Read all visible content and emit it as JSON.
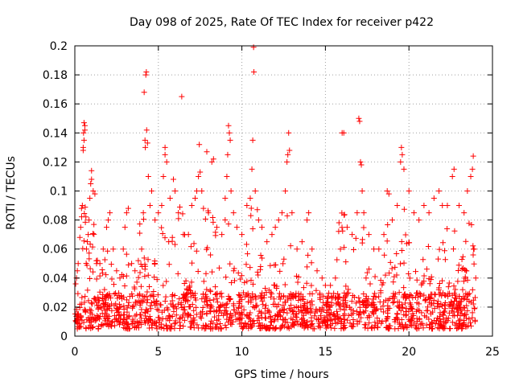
{
  "chart_data": {
    "type": "scatter",
    "title": "Day 098 of 2025, Rate Of TEC Index for receiver p422",
    "xlabel": "GPS time / hours",
    "ylabel": "ROTI / TECUs",
    "xlim": [
      0,
      25
    ],
    "ylim": [
      0,
      0.2
    ],
    "x_ticks": [
      0,
      5,
      10,
      15,
      20,
      25
    ],
    "x_tick_labels": [
      "0",
      "5",
      "10",
      "15",
      "20",
      "25"
    ],
    "y_ticks": [
      0,
      0.02,
      0.04,
      0.06,
      0.08,
      0.1,
      0.12,
      0.14,
      0.16,
      0.18,
      0.2
    ],
    "y_tick_labels": [
      "0",
      "0.02",
      "0.04",
      "0.06",
      "0.08",
      "0.1",
      "0.12",
      "0.14",
      "0.16",
      "0.18",
      "0.2"
    ],
    "grid": true,
    "marker": "+",
    "color": "#ff0000",
    "series": [
      {
        "name": "ROTI",
        "points": [
          [
            0.05,
            0.036
          ],
          [
            0.1,
            0.04
          ],
          [
            0.15,
            0.045
          ],
          [
            0.2,
            0.05
          ],
          [
            0.3,
            0.068
          ],
          [
            0.35,
            0.075
          ],
          [
            0.4,
            0.088
          ],
          [
            0.45,
            0.09
          ],
          [
            0.5,
            0.13
          ],
          [
            0.5,
            0.128
          ],
          [
            0.52,
            0.14
          ],
          [
            0.55,
            0.147
          ],
          [
            0.55,
            0.135
          ],
          [
            0.6,
            0.145
          ],
          [
            0.6,
            0.142
          ],
          [
            0.7,
            0.06
          ],
          [
            0.75,
            0.065
          ],
          [
            0.8,
            0.07
          ],
          [
            0.85,
            0.08
          ],
          [
            0.9,
            0.095
          ],
          [
            0.95,
            0.105
          ],
          [
            1.0,
            0.108
          ],
          [
            1.0,
            0.114
          ],
          [
            1.1,
            0.1
          ],
          [
            1.2,
            0.098
          ],
          [
            1.3,
            0.05
          ],
          [
            1.5,
            0.05
          ],
          [
            1.7,
            0.06
          ],
          [
            1.9,
            0.075
          ],
          [
            2.0,
            0.08
          ],
          [
            2.1,
            0.085
          ],
          [
            2.3,
            0.06
          ],
          [
            2.5,
            0.045
          ],
          [
            2.7,
            0.04
          ],
          [
            2.9,
            0.06
          ],
          [
            3.0,
            0.075
          ],
          [
            3.1,
            0.085
          ],
          [
            3.2,
            0.088
          ],
          [
            3.4,
            0.05
          ],
          [
            3.6,
            0.045
          ],
          [
            3.8,
            0.052
          ],
          [
            4.0,
            0.06
          ],
          [
            4.1,
            0.085
          ],
          [
            4.15,
            0.168
          ],
          [
            4.2,
            0.135
          ],
          [
            4.22,
            0.13
          ],
          [
            4.25,
            0.18
          ],
          [
            4.28,
            0.182
          ],
          [
            4.3,
            0.142
          ],
          [
            4.35,
            0.133
          ],
          [
            4.4,
            0.11
          ],
          [
            4.5,
            0.09
          ],
          [
            4.6,
            0.1
          ],
          [
            4.8,
            0.08
          ],
          [
            5.0,
            0.085
          ],
          [
            5.2,
            0.09
          ],
          [
            5.3,
            0.11
          ],
          [
            5.4,
            0.125
          ],
          [
            5.4,
            0.13
          ],
          [
            5.5,
            0.12
          ],
          [
            5.7,
            0.095
          ],
          [
            5.9,
            0.108
          ],
          [
            6.0,
            0.1
          ],
          [
            6.2,
            0.085
          ],
          [
            6.4,
            0.165
          ],
          [
            6.5,
            0.07
          ],
          [
            6.8,
            0.07
          ],
          [
            7.0,
            0.09
          ],
          [
            7.2,
            0.095
          ],
          [
            7.3,
            0.1
          ],
          [
            7.4,
            0.11
          ],
          [
            7.45,
            0.132
          ],
          [
            7.5,
            0.113
          ],
          [
            7.6,
            0.1
          ],
          [
            7.7,
            0.088
          ],
          [
            7.9,
            0.127
          ],
          [
            8.0,
            0.085
          ],
          [
            8.2,
            0.12
          ],
          [
            8.3,
            0.122
          ],
          [
            8.5,
            0.075
          ],
          [
            8.8,
            0.07
          ],
          [
            9.0,
            0.095
          ],
          [
            9.1,
            0.11
          ],
          [
            9.15,
            0.125
          ],
          [
            9.2,
            0.145
          ],
          [
            9.25,
            0.14
          ],
          [
            9.3,
            0.135
          ],
          [
            9.35,
            0.1
          ],
          [
            9.5,
            0.085
          ],
          [
            9.7,
            0.075
          ],
          [
            10.0,
            0.07
          ],
          [
            10.3,
            0.09
          ],
          [
            10.5,
            0.095
          ],
          [
            10.6,
            0.115
          ],
          [
            10.65,
            0.135
          ],
          [
            10.7,
            0.199
          ],
          [
            10.72,
            0.182
          ],
          [
            10.8,
            0.1
          ],
          [
            11.0,
            0.08
          ],
          [
            11.2,
            0.075
          ],
          [
            11.5,
            0.065
          ],
          [
            11.8,
            0.07
          ],
          [
            12.0,
            0.075
          ],
          [
            12.2,
            0.08
          ],
          [
            12.4,
            0.085
          ],
          [
            12.6,
            0.1
          ],
          [
            12.7,
            0.12
          ],
          [
            12.75,
            0.125
          ],
          [
            12.8,
            0.14
          ],
          [
            12.85,
            0.128
          ],
          [
            13.0,
            0.085
          ],
          [
            13.3,
            0.06
          ],
          [
            13.6,
            0.065
          ],
          [
            13.9,
            0.08
          ],
          [
            14.0,
            0.085
          ],
          [
            14.2,
            0.06
          ],
          [
            14.5,
            0.045
          ],
          [
            14.8,
            0.04
          ],
          [
            15.0,
            0.035
          ],
          [
            15.3,
            0.035
          ],
          [
            15.6,
            0.04
          ],
          [
            15.9,
            0.06
          ],
          [
            16.0,
            0.14
          ],
          [
            16.1,
            0.14
          ],
          [
            16.3,
            0.075
          ],
          [
            16.6,
            0.07
          ],
          [
            16.9,
            0.085
          ],
          [
            17.0,
            0.15
          ],
          [
            17.05,
            0.148
          ],
          [
            17.1,
            0.12
          ],
          [
            17.15,
            0.118
          ],
          [
            17.2,
            0.1
          ],
          [
            17.3,
            0.085
          ],
          [
            17.6,
            0.07
          ],
          [
            17.9,
            0.06
          ],
          [
            18.2,
            0.06
          ],
          [
            18.5,
            0.07
          ],
          [
            18.7,
            0.1
          ],
          [
            18.8,
            0.098
          ],
          [
            19.0,
            0.08
          ],
          [
            19.3,
            0.09
          ],
          [
            19.5,
            0.12
          ],
          [
            19.55,
            0.13
          ],
          [
            19.6,
            0.125
          ],
          [
            19.7,
            0.115
          ],
          [
            20.0,
            0.1
          ],
          [
            20.3,
            0.085
          ],
          [
            20.6,
            0.08
          ],
          [
            20.9,
            0.09
          ],
          [
            21.2,
            0.085
          ],
          [
            21.5,
            0.095
          ],
          [
            21.8,
            0.1
          ],
          [
            22.0,
            0.09
          ],
          [
            22.3,
            0.09
          ],
          [
            22.6,
            0.11
          ],
          [
            22.7,
            0.115
          ],
          [
            23.0,
            0.09
          ],
          [
            23.3,
            0.085
          ],
          [
            23.5,
            0.1
          ],
          [
            23.7,
            0.11
          ],
          [
            23.8,
            0.115
          ],
          [
            23.85,
            0.124
          ],
          [
            23.9,
            0.06
          ],
          [
            24.0,
            0.04
          ]
        ],
        "band_min": 0.005,
        "band_max": 0.03
      }
    ]
  }
}
